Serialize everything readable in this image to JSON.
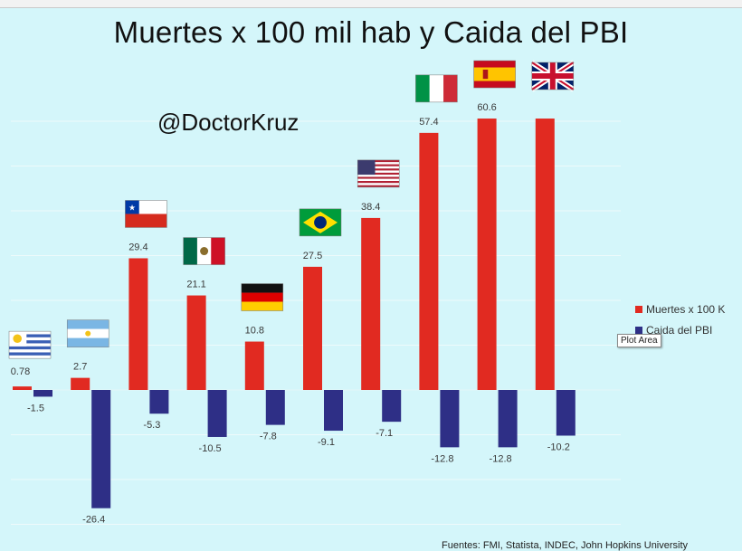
{
  "title": "Muertes x 100 mil hab y Caida del PBI",
  "watermark": "@DoctorKruz",
  "tooltip": "Plot Area",
  "source": "Fuentes: FMI, Statista, INDEC, John Hopkins University",
  "colors": {
    "background": "#d4f6fa",
    "deaths": "#e12a21",
    "gdp": "#2e2f86",
    "grid": "#eefafb"
  },
  "chart_data": {
    "type": "bar",
    "categories": [
      "Uruguay",
      "Argentina",
      "Chile",
      "Mexico",
      "Germany",
      "Brazil",
      "United States",
      "Italy",
      "Spain",
      "United Kingdom"
    ],
    "category_icons": [
      "flag-uruguay",
      "flag-argentina",
      "flag-chile",
      "flag-mexico",
      "flag-germany",
      "flag-brazil",
      "flag-usa",
      "flag-italy",
      "flag-spain",
      "flag-uk"
    ],
    "series": [
      {
        "name": "Muertes x 100 K",
        "values": [
          0.78,
          2.7,
          29.4,
          21.1,
          10.8,
          27.5,
          38.4,
          57.4,
          60.6,
          60.6
        ],
        "labels": [
          "0.78",
          "2.7",
          "29.4",
          "21.1",
          "10.8",
          "27.5",
          "38.4",
          "57.4",
          "60.6",
          ""
        ]
      },
      {
        "name": "Caida del PBI",
        "values": [
          -1.5,
          -26.4,
          -5.3,
          -10.5,
          -7.8,
          -9.1,
          -7.1,
          -12.8,
          -12.8,
          -10.2
        ],
        "labels": [
          "-1.5",
          "-26.4",
          "-5.3",
          "-10.5",
          "-7.8",
          "-9.1",
          "-7.1",
          "-12.8",
          "-12.8",
          "-10.2"
        ]
      }
    ],
    "ylim": [
      -30,
      60
    ],
    "grid": true,
    "legend_position": "right"
  }
}
